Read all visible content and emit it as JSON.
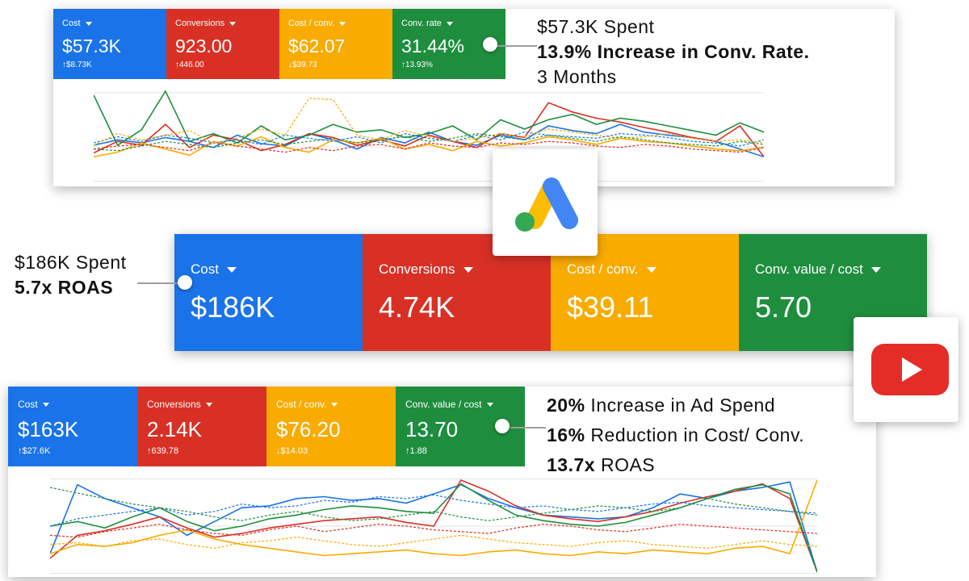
{
  "panel_top": {
    "tiles": [
      {
        "label": "Cost",
        "value": "$57.3K",
        "delta": "↑$8.73K",
        "color": "#1a73e8"
      },
      {
        "label": "Conversions",
        "value": "923.00",
        "delta": "↑446.00",
        "color": "#d93025"
      },
      {
        "label": "Cost / conv.",
        "value": "$62.07",
        "delta": "↓$39.73",
        "color": "#f9ab00"
      },
      {
        "label": "Conv. rate",
        "value": "31.44%",
        "delta": "↑13.93%",
        "color": "#1e8e3e"
      }
    ],
    "callout": {
      "line1": "$57.3K Spent",
      "line2": "13.9% Increase in Conv. Rate.",
      "line3": "3 Months"
    }
  },
  "panel_middle": {
    "tiles": [
      {
        "label": "Cost",
        "value": "$186K",
        "color": "#1a73e8"
      },
      {
        "label": "Conversions",
        "value": "4.74K",
        "color": "#d93025"
      },
      {
        "label": "Cost / conv.",
        "value": "$39.11",
        "color": "#f9ab00"
      },
      {
        "label": "Conv. value / cost",
        "value": "5.70",
        "color": "#1e8e3e"
      }
    ],
    "callout": {
      "line1": "$186K Spent",
      "line2": "5.7x ROAS"
    }
  },
  "panel_bottom": {
    "tiles": [
      {
        "label": "Cost",
        "value": "$163K",
        "delta": "↑$27.6K",
        "color": "#1a73e8"
      },
      {
        "label": "Conversions",
        "value": "2.14K",
        "delta": "↑639.78",
        "color": "#d93025"
      },
      {
        "label": "Cost / conv.",
        "value": "$76.20",
        "delta": "↓$14.03",
        "color": "#f9ab00"
      },
      {
        "label": "Conv. value / cost",
        "value": "13.70",
        "delta": "↑1.88",
        "color": "#1e8e3e"
      }
    ],
    "callout": {
      "line1_bold": "20%",
      "line1_rest": " Increase in Ad Spend",
      "line2_bold": "16%",
      "line2_rest": " Reduction in Cost/ Conv.",
      "line3_bold": "13.7x",
      "line3_rest": " ROAS"
    }
  },
  "icons": {
    "ads_logo": "google-ads-logo-icon",
    "youtube_logo": "youtube-logo-icon"
  },
  "chart_data": [
    {
      "type": "line",
      "series": [
        {
          "color": "#1a73e8",
          "values": [
            45,
            52,
            48,
            55,
            50,
            42,
            58,
            47,
            44,
            60,
            52,
            40,
            55,
            48,
            62,
            50,
            45,
            58,
            52,
            70,
            64,
            60,
            72,
            62,
            58,
            55,
            50,
            40,
            30
          ],
          "dashed": false
        },
        {
          "color": "#d93025",
          "values": [
            35,
            50,
            45,
            72,
            42,
            58,
            52,
            38,
            46,
            60,
            55,
            45,
            52,
            44,
            58,
            50,
            42,
            60,
            55,
            100,
            88,
            80,
            75,
            68,
            62,
            55,
            50,
            70,
            30
          ],
          "dashed": false
        },
        {
          "color": "#f9ab00",
          "values": [
            30,
            36,
            48,
            40,
            32,
            50,
            44,
            56,
            42,
            36,
            52,
            48,
            54,
            40,
            46,
            38,
            50,
            44,
            48,
            56,
            52,
            46,
            54,
            50,
            48,
            44,
            40,
            38,
            42
          ],
          "dashed": false
        },
        {
          "color": "#1e8e3e",
          "values": [
            110,
            45,
            65,
            115,
            50,
            60,
            48,
            70,
            52,
            58,
            72,
            62,
            65,
            55,
            60,
            70,
            52,
            78,
            66,
            78,
            85,
            72,
            80,
            76,
            70,
            64,
            58,
            74,
            62
          ],
          "dashed": false
        },
        {
          "color": "#1a73e8",
          "values": [
            48,
            56,
            50,
            58,
            54,
            48,
            52,
            46,
            58,
            54,
            50,
            56,
            48,
            60,
            54,
            50,
            58,
            52,
            62,
            58,
            56,
            54,
            60,
            58,
            55,
            50,
            48,
            44,
            52
          ],
          "dashed": true
        },
        {
          "color": "#d93025",
          "values": [
            40,
            44,
            46,
            42,
            38,
            48,
            44,
            40,
            36,
            42,
            38,
            44,
            46,
            40,
            48,
            44,
            42,
            48,
            46,
            50,
            48,
            44,
            42,
            46,
            44,
            40,
            38,
            36,
            42
          ],
          "dashed": true
        },
        {
          "color": "#f9ab00",
          "values": [
            45,
            60,
            52,
            58,
            64,
            48,
            54,
            66,
            58,
            106,
            104,
            58,
            52,
            64,
            56,
            50,
            54,
            60,
            56,
            66,
            62,
            58,
            54,
            56,
            60,
            54,
            50,
            52,
            48
          ],
          "dashed": true
        },
        {
          "color": "#1e8e3e",
          "values": [
            40,
            38,
            44,
            50,
            46,
            42,
            48,
            52,
            46,
            50,
            54,
            48,
            52,
            56,
            50,
            54,
            60,
            56,
            52,
            58,
            54,
            50,
            56,
            52,
            48,
            46,
            44,
            50,
            46
          ],
          "dashed": true
        }
      ]
    },
    {
      "type": "line",
      "series": [
        {
          "color": "#1a73e8",
          "values": [
            20,
            95,
            80,
            70,
            60,
            40,
            55,
            70,
            72,
            80,
            82,
            78,
            80,
            75,
            85,
            95,
            80,
            70,
            62,
            60,
            58,
            60,
            70,
            85,
            80,
            88,
            92,
            98,
            0
          ],
          "dashed": false
        },
        {
          "color": "#d93025",
          "values": [
            15,
            40,
            45,
            52,
            60,
            48,
            38,
            42,
            48,
            52,
            56,
            58,
            60,
            54,
            50,
            100,
            88,
            72,
            62,
            58,
            55,
            60,
            66,
            75,
            82,
            88,
            96,
            80,
            0
          ],
          "dashed": false
        },
        {
          "color": "#f9ab00",
          "values": [
            20,
            30,
            28,
            32,
            40,
            46,
            36,
            30,
            26,
            22,
            18,
            20,
            22,
            24,
            20,
            18,
            22,
            24,
            20,
            18,
            22,
            20,
            24,
            22,
            20,
            26,
            28,
            20,
            100
          ],
          "dashed": false
        },
        {
          "color": "#1e8e3e",
          "values": [
            50,
            55,
            48,
            60,
            70,
            55,
            45,
            50,
            58,
            62,
            68,
            72,
            70,
            66,
            64,
            96,
            78,
            62,
            56,
            52,
            50,
            54,
            62,
            70,
            80,
            90,
            95,
            85,
            0
          ],
          "dashed": false
        },
        {
          "color": "#1a73e8",
          "values": [
            50,
            58,
            62,
            66,
            70,
            62,
            66,
            74,
            70,
            72,
            78,
            76,
            82,
            80,
            84,
            78,
            74,
            70,
            72,
            68,
            66,
            70,
            74,
            76,
            72,
            70,
            68,
            66,
            64
          ],
          "dashed": true
        },
        {
          "color": "#d93025",
          "values": [
            40,
            38,
            44,
            48,
            52,
            46,
            42,
            40,
            46,
            50,
            44,
            48,
            52,
            50,
            46,
            44,
            42,
            48,
            52,
            50,
            46,
            44,
            48,
            52,
            50,
            48,
            46,
            44,
            42
          ],
          "dashed": true
        },
        {
          "color": "#f9ab00",
          "values": [
            30,
            32,
            28,
            34,
            36,
            30,
            26,
            32,
            34,
            38,
            34,
            30,
            28,
            32,
            36,
            40,
            36,
            32,
            30,
            28,
            32,
            34,
            30,
            28,
            26,
            30,
            34,
            30,
            28
          ],
          "dashed": true
        },
        {
          "color": "#1e8e3e",
          "values": [
            92,
            86,
            80,
            74,
            70,
            66,
            60,
            56,
            62,
            66,
            60,
            56,
            58,
            62,
            66,
            60,
            56,
            60,
            64,
            68,
            72,
            70,
            66,
            70,
            80,
            74,
            70,
            66,
            62
          ],
          "dashed": true
        }
      ]
    }
  ]
}
